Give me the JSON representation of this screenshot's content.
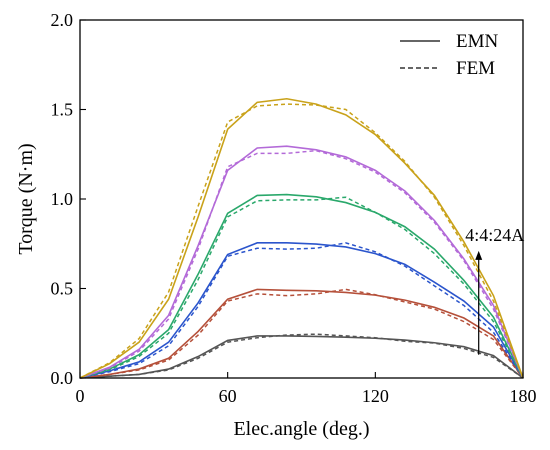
{
  "chart_data": {
    "type": "line",
    "xlabel": "Elec.angle (deg.)",
    "ylabel": "Torque (N·m)",
    "xlim": [
      0,
      180
    ],
    "ylim": [
      0,
      2.0
    ],
    "xticks": [
      0,
      60,
      120,
      180
    ],
    "yticks": [
      0.0,
      0.5,
      1.0,
      1.5,
      2.0
    ],
    "xtick_labels": [
      "0",
      "60",
      "120",
      "180"
    ],
    "ytick_labels": [
      "0.0",
      "0.5",
      "1.0",
      "1.5",
      "2.0"
    ],
    "grid": false,
    "legend": {
      "placement": "top-right",
      "entries": [
        {
          "label": "EMN",
          "style": "solid"
        },
        {
          "label": "FEM",
          "style": "dashed"
        }
      ]
    },
    "annotation": {
      "text": "4:4:24A",
      "arrow_x": 162,
      "arrow_from_y": 0.13,
      "arrow_to_y": 0.71
    },
    "x": [
      0,
      12,
      24,
      36,
      48,
      60,
      72,
      84,
      96,
      108,
      120,
      132,
      144,
      156,
      168,
      180
    ],
    "series": [
      {
        "color": "#555555",
        "values": [
          0,
          0.01,
          0.02,
          0.05,
          0.12,
          0.21,
          0.235,
          0.235,
          0.232,
          0.228,
          0.222,
          0.212,
          0.197,
          0.175,
          0.125,
          0
        ],
        "fem_values": [
          0,
          0.01,
          0.02,
          0.045,
          0.11,
          0.2,
          0.225,
          0.24,
          0.245,
          0.235,
          0.225,
          0.205,
          0.195,
          0.165,
          0.115,
          0
        ]
      },
      {
        "color": "#b5503a",
        "values": [
          0,
          0.02,
          0.05,
          0.11,
          0.26,
          0.44,
          0.495,
          0.49,
          0.487,
          0.478,
          0.463,
          0.435,
          0.395,
          0.335,
          0.235,
          0
        ],
        "fem_values": [
          0,
          0.02,
          0.045,
          0.1,
          0.24,
          0.43,
          0.47,
          0.46,
          0.47,
          0.495,
          0.465,
          0.425,
          0.385,
          0.315,
          0.215,
          0
        ]
      },
      {
        "color": "#2b55cc",
        "values": [
          0,
          0.04,
          0.09,
          0.2,
          0.42,
          0.69,
          0.755,
          0.755,
          0.748,
          0.732,
          0.695,
          0.635,
          0.535,
          0.43,
          0.285,
          0
        ],
        "fem_values": [
          0,
          0.035,
          0.08,
          0.18,
          0.4,
          0.68,
          0.725,
          0.72,
          0.725,
          0.755,
          0.705,
          0.625,
          0.515,
          0.405,
          0.255,
          0
        ]
      },
      {
        "color": "#2aa86b",
        "values": [
          0,
          0.05,
          0.13,
          0.27,
          0.58,
          0.92,
          1.02,
          1.025,
          1.012,
          0.98,
          0.925,
          0.845,
          0.72,
          0.545,
          0.34,
          0
        ],
        "fem_values": [
          0,
          0.045,
          0.12,
          0.25,
          0.55,
          0.9,
          0.99,
          0.995,
          0.995,
          1.01,
          0.925,
          0.83,
          0.695,
          0.525,
          0.315,
          0
        ]
      },
      {
        "color": "#b36ad8",
        "values": [
          0,
          0.06,
          0.16,
          0.35,
          0.74,
          1.16,
          1.285,
          1.295,
          1.275,
          1.235,
          1.16,
          1.045,
          0.88,
          0.665,
          0.405,
          0
        ],
        "fem_values": [
          0,
          0.055,
          0.15,
          0.33,
          0.72,
          1.18,
          1.255,
          1.255,
          1.27,
          1.225,
          1.15,
          1.035,
          0.87,
          0.655,
          0.385,
          0
        ]
      },
      {
        "color": "#c9a21a",
        "values": [
          0,
          0.08,
          0.2,
          0.44,
          0.9,
          1.39,
          1.54,
          1.56,
          1.53,
          1.47,
          1.36,
          1.2,
          1.02,
          0.76,
          0.46,
          0
        ],
        "fem_values": [
          0,
          0.085,
          0.22,
          0.48,
          0.96,
          1.43,
          1.52,
          1.53,
          1.525,
          1.5,
          1.37,
          1.21,
          1.01,
          0.74,
          0.43,
          0
        ]
      }
    ]
  }
}
